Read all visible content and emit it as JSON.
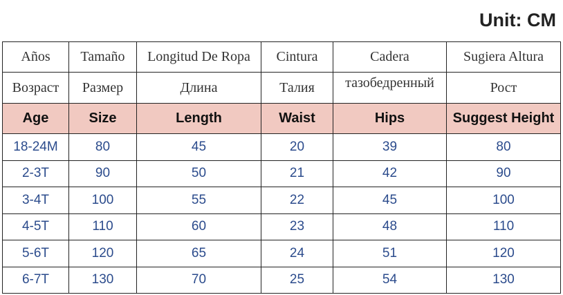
{
  "unit": "Unit: CM",
  "table": {
    "header_es": [
      "Años",
      "Tamaño",
      "Longitud De Ropa",
      "Cintura",
      "Cadera",
      "Sugiera Altura"
    ],
    "header_ru": [
      "Возраст",
      "Размер",
      "Длина",
      "Талия",
      "тазобедренный",
      "Рост"
    ],
    "header_en": [
      "Age",
      "Size",
      "Length",
      "Waist",
      "Hips",
      "Suggest Height"
    ],
    "rows": [
      [
        "18-24M",
        80,
        45,
        20,
        39,
        80
      ],
      [
        "2-3T",
        90,
        50,
        21,
        42,
        90
      ],
      [
        "3-4T",
        100,
        55,
        22,
        45,
        100
      ],
      [
        "4-5T",
        110,
        60,
        23,
        48,
        110
      ],
      [
        "5-6T",
        120,
        65,
        24,
        51,
        120
      ],
      [
        "6-7T",
        130,
        70,
        25,
        54,
        130
      ]
    ]
  }
}
